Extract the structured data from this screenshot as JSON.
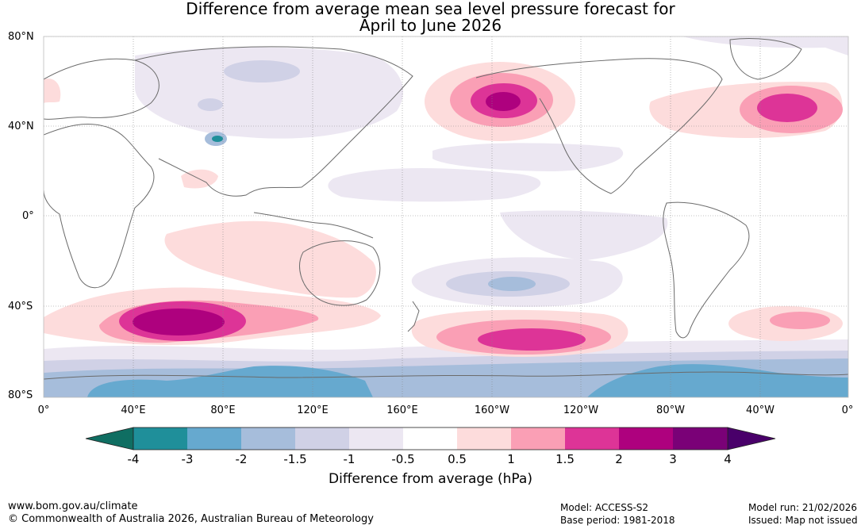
{
  "title": {
    "line1": "Difference from average mean sea level pressure forecast for",
    "line2": "April to June 2026"
  },
  "axes": {
    "lat_labels": [
      "80°N",
      "40°N",
      "0°",
      "40°S",
      "80°S"
    ],
    "lon_labels": [
      "0°",
      "40°E",
      "80°E",
      "120°E",
      "160°E",
      "160°W",
      "120°W",
      "80°W",
      "40°W",
      "0°"
    ]
  },
  "colorbar": {
    "title": "Difference from average (hPa)",
    "tick_labels": [
      "-4",
      "-3",
      "-2",
      "-1.5",
      "-1",
      "-0.5",
      "0.5",
      "1",
      "1.5",
      "2",
      "3",
      "4"
    ],
    "colors": [
      "#0f6e62",
      "#1f8f9a",
      "#66a9cf",
      "#a6bddb",
      "#d0d1e6",
      "#ece7f2",
      "#ffffff",
      "#fddcdc",
      "#fa9fb5",
      "#dd3497",
      "#ae017e",
      "#7a0177",
      "#49006a"
    ]
  },
  "footer": {
    "website": "www.bom.gov.au/climate",
    "copyright": "© Commonwealth of Australia 2026, Australian Bureau of Meteorology",
    "model": "Model: ACCESS-S2",
    "base_period": "Base period: 1981-2018",
    "model_run": "Model run: 21/02/2026",
    "issued": "Issued: Map not issued"
  }
}
